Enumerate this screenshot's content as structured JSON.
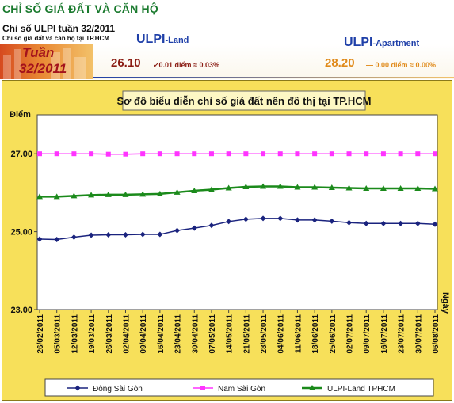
{
  "header": {
    "title": "CHỈ SỐ GIÁ ĐẤT VÀ CĂN HỘ",
    "subtitle": "Chỉ số ULPI tuần 32/2011",
    "subtitle2": "Chỉ số giá đất và căn hộ tại TP.HCM"
  },
  "banner": {
    "week_label": "Tuần",
    "week_value": "32/2011",
    "land": {
      "name": "ULPI",
      "suffix": "-Land",
      "value": "26.10",
      "change": "↙0.01 điểm ≈ 0.03%"
    },
    "apartment": {
      "name": "ULPI",
      "suffix": "-Apartment",
      "value": "28.20",
      "change": "— 0.00 điểm ≈ 0.00%"
    }
  },
  "colors": {
    "series_1": "#1a237e",
    "series_2": "#ff33ff",
    "series_3": "#1b8a1b",
    "frame": "#f7e05a"
  },
  "chart_data": {
    "type": "line",
    "title": "Sơ đồ biểu diễn chỉ số giá đất nền đô thị tại TP.HCM",
    "ylabel": "Điểm",
    "xlabel": "Ngày",
    "ylim": [
      23.0,
      28.0
    ],
    "yticks": [
      "23.00",
      "25.00",
      "27.00"
    ],
    "ytick_values": [
      23.0,
      25.0,
      27.0
    ],
    "grid": false,
    "legend_position": "bottom",
    "categories": [
      "26/02/2011",
      "05/03/2011",
      "12/03/2011",
      "19/03/2011",
      "26/03/2011",
      "02/04/2011",
      "09/04/2011",
      "16/04/2011",
      "23/04/2011",
      "30/04/2011",
      "07/05/2011",
      "14/05/2011",
      "21/05/2011",
      "28/05/2011",
      "04/06/2011",
      "11/06/2011",
      "18/06/2011",
      "25/06/2011",
      "02/07/2011",
      "09/07/2011",
      "16/07/2011",
      "23/07/2011",
      "30/07/2011",
      "06/08/2011"
    ],
    "series": [
      {
        "name": "Đông Sài Gòn",
        "marker": "diamond",
        "values": [
          24.81,
          24.8,
          24.86,
          24.91,
          24.92,
          24.92,
          24.93,
          24.93,
          25.03,
          25.09,
          25.16,
          25.26,
          25.32,
          25.34,
          25.34,
          25.3,
          25.3,
          25.27,
          25.23,
          25.21,
          25.21,
          25.21,
          25.21,
          25.19
        ]
      },
      {
        "name": "Nam Sài Gòn",
        "marker": "square",
        "values": [
          27.0,
          27.0,
          27.0,
          27.0,
          26.99,
          26.99,
          27.0,
          27.0,
          27.0,
          27.0,
          27.0,
          27.0,
          27.0,
          27.0,
          27.0,
          27.0,
          27.0,
          27.0,
          27.0,
          27.0,
          27.0,
          27.0,
          27.0,
          27.0
        ]
      },
      {
        "name": "ULPI-Land TPHCM",
        "marker": "triangle",
        "values": [
          25.9,
          25.9,
          25.92,
          25.94,
          25.95,
          25.95,
          25.96,
          25.97,
          26.01,
          26.05,
          26.08,
          26.12,
          26.15,
          26.16,
          26.16,
          26.14,
          26.14,
          26.13,
          26.12,
          26.11,
          26.11,
          26.11,
          26.11,
          26.1
        ]
      }
    ]
  }
}
